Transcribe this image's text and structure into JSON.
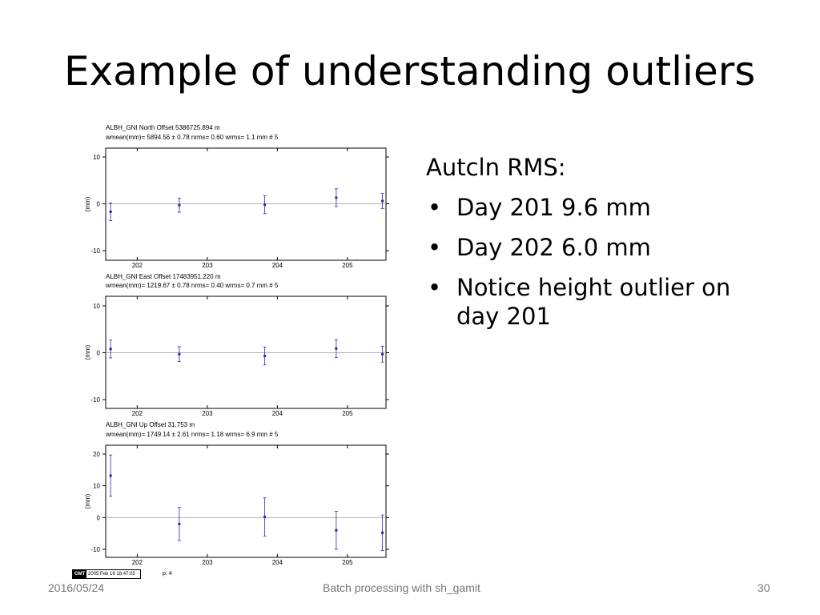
{
  "slide": {
    "title": "Example of understanding outliers",
    "bullets_heading": "Autcln RMS:",
    "bullets": [
      "Day 201  9.6 mm",
      "Day 202  6.0 mm",
      "Notice height outlier on day 201"
    ],
    "footer_date": "2016/05/24",
    "footer_center": "Batch processing with sh_gamit",
    "footer_page": "30",
    "gmt_label": "GMT",
    "gmt_timestamp": "2005 Feb 19 18:47:05",
    "page_code": "p: 4"
  },
  "chart_data": [
    {
      "type": "scatter",
      "header_line1": "ALBH_GNI  North Offset   5386725.894 m",
      "header_line2": "wmean(mm)= 5894.56 ±  0.78  nrms=  0.60  wrms=   1.1 mm # 5",
      "ylabel": "(mm)",
      "xlim": [
        201.55,
        205.55
      ],
      "ylim": [
        -10,
        10
      ],
      "xticks": [
        202,
        203,
        204,
        205
      ],
      "yticks": [
        10,
        0,
        -10
      ],
      "x": [
        201.62,
        202.6,
        203.82,
        204.84,
        205.5
      ],
      "y": [
        -1.7,
        -0.3,
        -0.2,
        1.3,
        0.6
      ],
      "err": [
        1.9,
        1.5,
        1.9,
        1.9,
        1.6
      ],
      "grid": false,
      "marker_color": "#2b2ba8"
    },
    {
      "type": "scatter",
      "header_line1": "ALBH_GNI  East Offset  17483951.220 m",
      "header_line2": "wmean(mm)= 1219.67 ±  0.78  nrms=  0.40  wrms=   0.7 mm # 5",
      "ylabel": "(mm)",
      "xlim": [
        201.55,
        205.55
      ],
      "ylim": [
        -10,
        10
      ],
      "xticks": [
        202,
        203,
        204,
        205
      ],
      "yticks": [
        10,
        0,
        -10
      ],
      "x": [
        201.62,
        202.6,
        203.82,
        204.84,
        205.5
      ],
      "y": [
        0.8,
        -0.3,
        -0.7,
        0.9,
        -0.3
      ],
      "err": [
        1.9,
        1.6,
        1.9,
        1.9,
        1.7
      ],
      "grid": false,
      "marker_color": "#2b2ba8"
    },
    {
      "type": "scatter",
      "header_line1": "ALBH_GNI  Up Offset        31.753 m",
      "header_line2": "wmean(mm)= 1749.14 ±  2.61  nrms=  1.18  wrms=   6.9 mm # 5",
      "ylabel": "(mm)",
      "xlim": [
        201.55,
        205.55
      ],
      "ylim": [
        -12,
        22
      ],
      "xticks": [
        202,
        203,
        204,
        205
      ],
      "yticks": [
        20,
        10,
        0,
        -10
      ],
      "x": [
        201.62,
        202.6,
        203.82,
        204.84,
        205.5
      ],
      "y": [
        13.2,
        -2.0,
        0.2,
        -4.0,
        -4.8
      ],
      "err": [
        6.5,
        5.2,
        6.0,
        6.0,
        5.6
      ],
      "grid": false,
      "marker_color": "#2b2ba8"
    }
  ]
}
